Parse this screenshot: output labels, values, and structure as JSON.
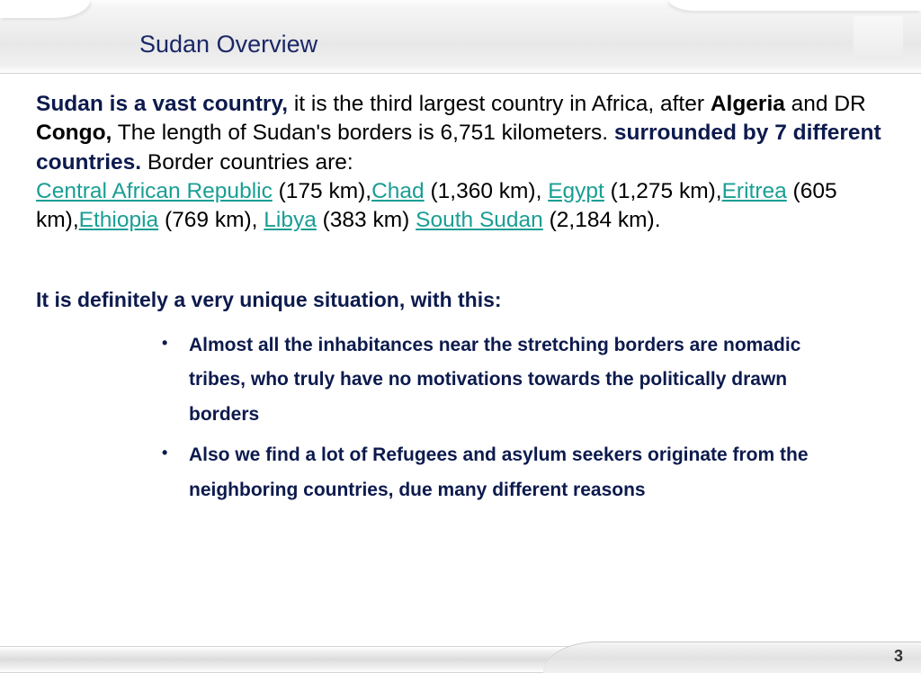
{
  "title": "Sudan Overview",
  "p1": {
    "lead": "Sudan is a vast country,",
    "t1": " it is the third largest country in Africa, after ",
    "b1": "Algeria",
    "t2": " and DR ",
    "b2": "Congo,",
    "t3": " The length of Sudan's borders is 6,751 kilometers. ",
    "lead2": "surrounded by 7 different countries.",
    "t4": " Border countries are:",
    "c1": "Central African Republic",
    "d1": " (175 km),",
    "c2": "Chad",
    "d2": " (1,360 km), ",
    "c3": "Egypt",
    "d3": " (1,275 km),",
    "c4": "Eritrea",
    "d4": " (605 km),",
    "c5": "Ethiopia",
    "d5": " (769 km), ",
    "c6": "Libya",
    "d6": " (383 km) ",
    "c7": "South Sudan",
    "d7": " (2,184 km)."
  },
  "subheading": "It is definitely a very unique situation, with this:",
  "bullets": {
    "b1": "Almost all the inhabitances near the stretching borders are nomadic tribes, who truly have no motivations towards the politically drawn borders",
    "b2": "Also we find a lot of Refugees and asylum seekers originate from the neighboring countries, due many different reasons"
  },
  "pageNumber": "3",
  "colors": {
    "navy": "#0c1a4d",
    "teal": "#1a9e94",
    "headerGrad": "#eeeeee",
    "background": "#ffffff"
  }
}
